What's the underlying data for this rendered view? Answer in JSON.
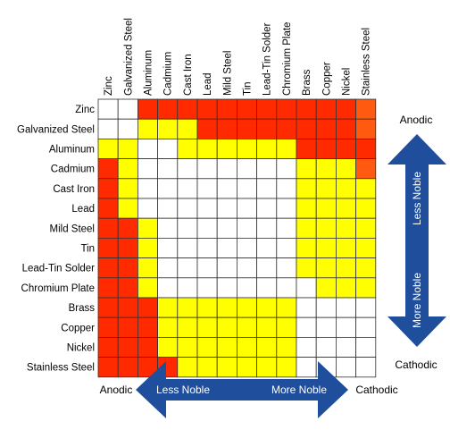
{
  "metals": [
    "Zinc",
    "Galvanized Steel",
    "Aluminum",
    "Cadmium",
    "Cast Iron",
    "Lead",
    "Mild Steel",
    "Tin",
    "Lead-Tin Solder",
    "Chromium Plate",
    "Brass",
    "Copper",
    "Nickel",
    "Stainless Steel"
  ],
  "legend": {
    "red": "#ff2a00",
    "orange": "#ff5a10",
    "yellow": "#ffff00",
    "white": "#ffffff"
  },
  "grid": [
    "WWRRRRRRRRRRRO",
    "WWYYYRRRRRRRRO",
    "YYWWYYYYYYRRRR",
    "RYWWWWWWWWYYYO",
    "RYWWWWWWWWYYYY",
    "RYWWWWWWWWYYYY",
    "RRYWWWWWWWYYYY",
    "RRYWWWWWWWYYYY",
    "RRYWWWWWWWYYYY",
    "RRYWWWWWWWWYYY",
    "RRRYYYYYYYWWWW",
    "RRRYYYYYYYWWWW",
    "RRRYYYYYYYWWWW",
    "RRRRYYYYYYWWWW"
  ],
  "vertical_arrow": {
    "top_label": "Anodic",
    "bottom_label": "Cathodic",
    "upper_text": "Less Noble",
    "lower_text": "More Noble",
    "color": "#1f4e9c"
  },
  "horizontal_arrow": {
    "left_label": "Anodic",
    "right_label": "Cathodic",
    "left_text": "Less Noble",
    "right_text": "More Noble",
    "color": "#1f4e9c"
  }
}
